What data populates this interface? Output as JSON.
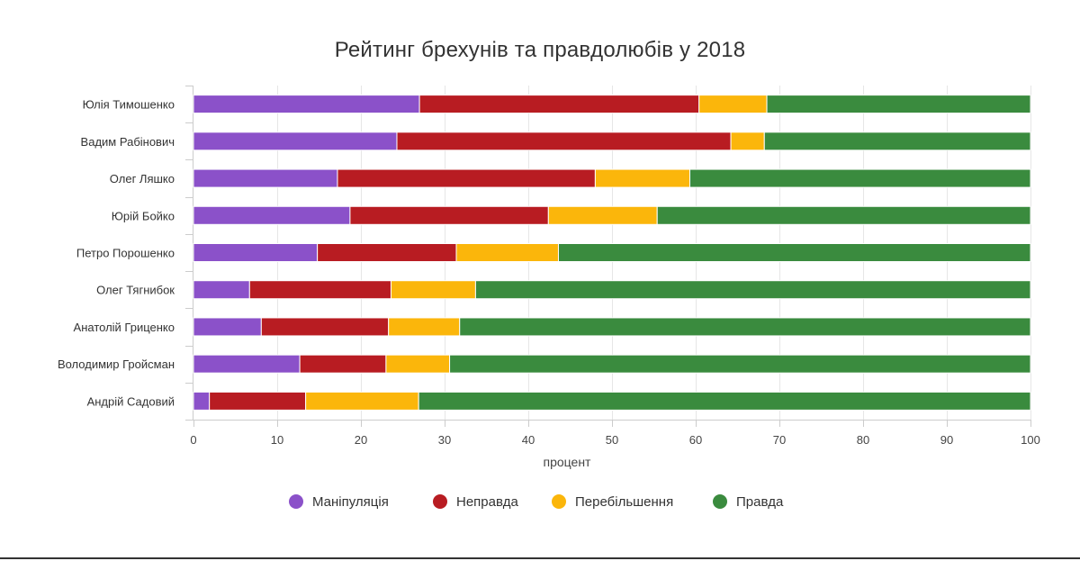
{
  "chart_data": {
    "type": "bar",
    "orientation": "horizontal",
    "stacked": true,
    "title": "Рейтинг брехунів та правдолюбів у 2018",
    "xlabel": "процент",
    "ylabel": "",
    "xlim": [
      0,
      100
    ],
    "xticks": [
      0,
      10,
      20,
      30,
      40,
      50,
      60,
      70,
      80,
      90,
      100
    ],
    "grid": "vertical",
    "legend_position": "bottom",
    "categories": [
      "Юлія Тимошенко",
      "Вадим Рабінович",
      "Олег Ляшко",
      "Юрій Бойко",
      "Петро Порошенко",
      "Олег Тягнибок",
      "Анатолій Гриценко",
      "Володимир Гройсман",
      "Андрій Садовий"
    ],
    "series": [
      {
        "name": "Маніпуляція",
        "color": "#8b51c9",
        "values": [
          27,
          24.3,
          17.2,
          18.7,
          14.8,
          6.7,
          8.1,
          12.7,
          1.9
        ]
      },
      {
        "name": "Неправда",
        "color": "#b81c22",
        "values": [
          33.4,
          39.9,
          30.8,
          23.7,
          16.6,
          16.9,
          15.2,
          10.3,
          11.5
        ]
      },
      {
        "name": "Перебільшення",
        "color": "#fbb60b",
        "values": [
          8.1,
          4,
          11.3,
          13,
          12.2,
          10.1,
          8.5,
          7.6,
          13.5
        ]
      },
      {
        "name": "Правда",
        "color": "#3a8b3e",
        "values": [
          31.5,
          31.8,
          40.7,
          44.6,
          56.4,
          66.3,
          68.2,
          69.4,
          73.1
        ]
      }
    ]
  }
}
